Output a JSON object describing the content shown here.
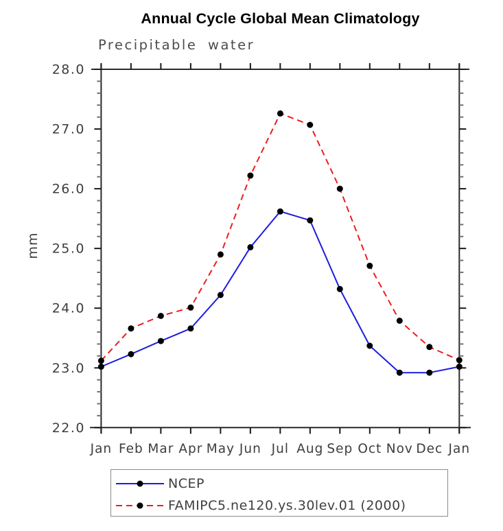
{
  "header": {
    "title": "Annual Cycle Global Mean Climatology",
    "subtitle": "Precipitable water"
  },
  "chart_data": {
    "type": "line",
    "title": "Annual Cycle Global Mean Climatology",
    "subtitle": "Precipitable water",
    "xlabel": "",
    "ylabel": "mm",
    "ylim": [
      22.0,
      28.0
    ],
    "ytick_interval": 1.0,
    "ytick_labels": [
      "22.0",
      "23.0",
      "24.0",
      "25.0",
      "26.0",
      "27.0",
      "28.0"
    ],
    "minor_ticks_per_interval": 4,
    "grid": false,
    "legend_position": "bottom-left",
    "categories": [
      "Jan",
      "Feb",
      "Mar",
      "Apr",
      "May",
      "Jun",
      "Jul",
      "Aug",
      "Sep",
      "Oct",
      "Nov",
      "Dec",
      "Jan"
    ],
    "series": [
      {
        "name": "NCEP",
        "color": "#1c1cdf",
        "line_style": "solid",
        "marker": "filled-circle",
        "marker_color": "#000000",
        "values": [
          23.02,
          23.23,
          23.45,
          23.66,
          24.22,
          25.02,
          25.62,
          25.47,
          24.32,
          23.37,
          22.92,
          22.92,
          23.02
        ]
      },
      {
        "name": "FAMIPC5.ne120.ys.30lev.01 (2000)",
        "color": "#ee1c1c",
        "line_style": "dashed",
        "marker": "filled-circle",
        "marker_color": "#000000",
        "values": [
          23.12,
          23.66,
          23.87,
          24.01,
          24.9,
          26.22,
          27.26,
          27.07,
          26.0,
          24.71,
          23.79,
          23.35,
          23.13
        ]
      }
    ],
    "style_colors": {
      "frame": "#2a2a2a",
      "tick_label": "#3d3d3d",
      "legend_border": "#8a8a8a"
    }
  }
}
